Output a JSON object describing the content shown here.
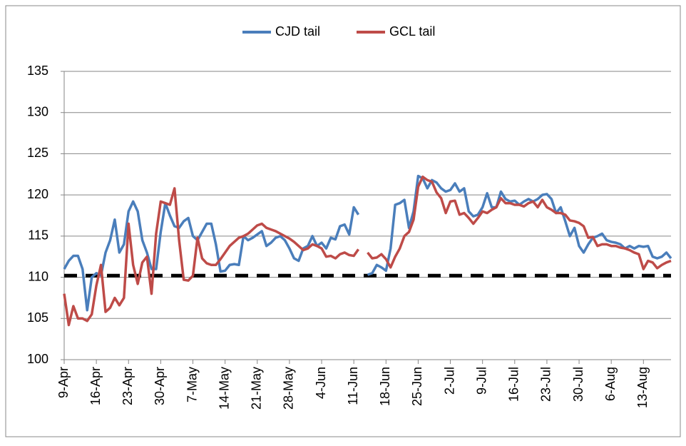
{
  "chart_data": {
    "type": "line",
    "categories": [
      "9-Apr",
      null,
      null,
      null,
      null,
      null,
      null,
      "16-Apr",
      null,
      null,
      null,
      null,
      null,
      null,
      "23-Apr",
      null,
      null,
      null,
      null,
      null,
      null,
      "30-Apr",
      null,
      null,
      null,
      null,
      null,
      null,
      "7-May",
      null,
      null,
      null,
      null,
      null,
      null,
      "14-May",
      null,
      null,
      null,
      null,
      null,
      null,
      "21-May",
      null,
      null,
      null,
      null,
      null,
      null,
      "28-May",
      null,
      null,
      null,
      null,
      null,
      null,
      "4-Jun",
      null,
      null,
      null,
      null,
      null,
      null,
      "11-Jun",
      null,
      null,
      null,
      null,
      null,
      null,
      "18-Jun",
      null,
      null,
      null,
      null,
      null,
      null,
      "25-Jun",
      null,
      null,
      null,
      null,
      null,
      null,
      "2-Jul",
      null,
      null,
      null,
      null,
      null,
      null,
      "9-Jul",
      null,
      null,
      null,
      null,
      null,
      null,
      "16-Jul",
      null,
      null,
      null,
      null,
      null,
      null,
      "23-Jul",
      null,
      null,
      null,
      null,
      null,
      null,
      "30-Jul",
      null,
      null,
      null,
      null,
      null,
      null,
      "6-Aug",
      null,
      null,
      null,
      null,
      null,
      null,
      "13-Aug",
      null,
      null,
      null,
      null,
      null,
      null
    ],
    "series": [
      {
        "name": "CJD tail",
        "color": "#4a7ebb",
        "values": [
          111,
          112,
          112.6,
          112.6,
          111,
          106,
          110,
          110.5,
          110.2,
          113,
          114.5,
          117,
          113,
          114,
          118,
          119.2,
          118,
          114.5,
          113,
          111,
          111,
          115.5,
          119,
          117.5,
          116.2,
          116,
          116.8,
          117.2,
          115,
          114.5,
          115.5,
          116.5,
          116.5,
          114,
          110.7,
          110.8,
          111.5,
          111.6,
          111.5,
          115,
          114.5,
          114.8,
          115.2,
          115.6,
          113.8,
          114.2,
          114.8,
          115,
          114.5,
          113.5,
          112.3,
          112,
          113.5,
          113.8,
          115,
          113.8,
          114.2,
          113.5,
          114.8,
          114.6,
          116.2,
          116.4,
          115.2,
          118.5,
          117.6,
          null,
          110.3,
          110.5,
          111.5,
          111.2,
          110.8,
          113.5,
          118.8,
          119,
          119.4,
          116,
          118,
          122.3,
          122,
          120.8,
          121.8,
          121.5,
          120.8,
          120.4,
          120.6,
          121.4,
          120.4,
          120.8,
          118,
          117.4,
          117.6,
          118.5,
          120.2,
          118.5,
          118.5,
          120.4,
          119.5,
          119.2,
          119.3,
          118.8,
          119.2,
          119.5,
          119.2,
          119.5,
          120,
          120.1,
          119.5,
          117.8,
          118.5,
          116.8,
          115,
          116,
          113.8,
          113,
          114,
          114.8,
          115,
          115.3,
          114.5,
          114.3,
          114.2,
          114,
          113.5,
          113.8,
          113.5,
          113.8,
          113.7,
          113.8,
          112.5,
          112.3,
          112.5,
          113,
          112.3
        ]
      },
      {
        "name": "GCL tail",
        "color": "#be4b48",
        "values": [
          108,
          104.2,
          106.5,
          105,
          105,
          104.7,
          105.5,
          109,
          111.5,
          105.8,
          106.3,
          107.5,
          106.6,
          107.5,
          116.5,
          111.5,
          109.2,
          111.8,
          112.5,
          108,
          115.3,
          119.2,
          119,
          118.8,
          120.8,
          114.5,
          109.7,
          109.6,
          110.2,
          114.8,
          112.3,
          111.7,
          111.5,
          111.5,
          112.2,
          113,
          113.8,
          114.3,
          114.8,
          115,
          115.3,
          115.8,
          116.3,
          116.5,
          116,
          115.8,
          115.6,
          115.3,
          115,
          114.7,
          114.3,
          113.8,
          113.3,
          113.5,
          114,
          113.8,
          113.5,
          112.5,
          112.6,
          112.3,
          112.8,
          113,
          112.7,
          112.6,
          113.4,
          null,
          113,
          112.3,
          112.4,
          112.8,
          112.2,
          111.2,
          112.5,
          113.5,
          115,
          115.5,
          117,
          121,
          122.2,
          121.8,
          121.6,
          120.3,
          119.6,
          117.8,
          119.2,
          119.3,
          117.6,
          117.8,
          117.2,
          116.5,
          117.2,
          118,
          117.8,
          118.2,
          118.5,
          119.6,
          119,
          119,
          118.8,
          118.8,
          118.6,
          119,
          119.2,
          118.5,
          119.4,
          118.5,
          118.2,
          117.8,
          117.8,
          117.6,
          116.9,
          116.8,
          116.6,
          116.2,
          114.8,
          114.9,
          113.8,
          114,
          114,
          113.8,
          113.8,
          113.6,
          113.5,
          113.3,
          113,
          112.8,
          111,
          112,
          111.8,
          111.1,
          111.5,
          111.8,
          112
        ]
      }
    ],
    "reference_line": {
      "value": 110.2,
      "color": "#000000"
    },
    "ylim": [
      100,
      135
    ],
    "yticks": [
      100,
      105,
      110,
      115,
      120,
      125,
      130,
      135
    ],
    "grid": true,
    "legend": "top"
  }
}
